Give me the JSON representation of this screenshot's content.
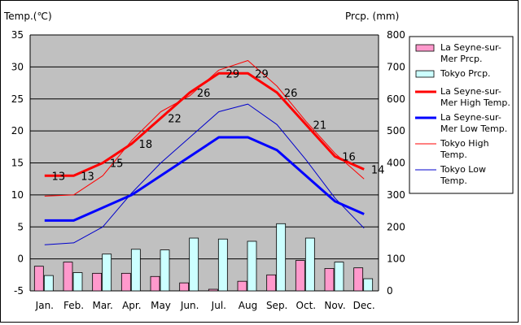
{
  "chart_data": {
    "type": "bar+line",
    "categories": [
      "Jan.",
      "Feb.",
      "Mar.",
      "Apr.",
      "May",
      "Jun.",
      "Jul.",
      "Aug",
      "Sep.",
      "Oct.",
      "Nov.",
      "Dec."
    ],
    "left_axis": {
      "label": "Temp.(℃)",
      "range": [
        -5,
        35
      ],
      "ticks": [
        -5,
        0,
        5,
        10,
        15,
        20,
        25,
        30,
        35
      ]
    },
    "right_axis": {
      "label": "Prcp. (mm)",
      "range": [
        0,
        800
      ],
      "ticks": [
        0,
        100,
        200,
        300,
        400,
        500,
        600,
        700,
        800
      ]
    },
    "grid": true,
    "plot_background": "#c0c0c0",
    "bar_series": [
      {
        "name": "La Seyne-sur-Mer Prcp.",
        "color": "#ff99cc",
        "values": [
          77,
          90,
          55,
          55,
          45,
          25,
          5,
          30,
          50,
          95,
          70,
          72
        ]
      },
      {
        "name": "Tokyo Prcp.",
        "color": "#ccffff",
        "values": [
          48,
          57,
          115,
          130,
          128,
          165,
          162,
          155,
          210,
          165,
          90,
          38
        ]
      }
    ],
    "line_series": [
      {
        "name": "La Seyne-sur-Mer High Temp.",
        "color": "#ff0000",
        "width": 3,
        "values": [
          13,
          13,
          15,
          18,
          22,
          26,
          29,
          29,
          26,
          21,
          16,
          14
        ],
        "show_labels": true
      },
      {
        "name": "La Seyne-sur-Mer Low Temp.",
        "color": "#0000ff",
        "width": 3,
        "values": [
          6,
          6,
          8,
          10,
          13,
          16,
          19,
          19,
          17,
          13,
          9,
          7
        ],
        "show_labels": false
      },
      {
        "name": "Tokyo High Temp.",
        "color": "#ff0000",
        "width": 1,
        "values": [
          9.8,
          10,
          13,
          18.5,
          23,
          25.5,
          29.5,
          31,
          27,
          21.5,
          16.5,
          12.5
        ],
        "show_labels": false
      },
      {
        "name": "Tokyo Low Temp.",
        "color": "#0000cc",
        "width": 1,
        "values": [
          2.2,
          2.5,
          5,
          10.3,
          15,
          19,
          23,
          24.2,
          21,
          15.5,
          9.5,
          4.8
        ],
        "show_labels": false
      }
    ],
    "legend": {
      "placement": "right",
      "entries": [
        {
          "lines": [
            "La Seyne-sur-",
            "Mer Prcp."
          ],
          "kind": "bar",
          "color": "#ff99cc"
        },
        {
          "lines": [
            "Tokyo Prcp."
          ],
          "kind": "bar",
          "color": "#ccffff"
        },
        {
          "lines": [
            "La Seyne-sur-",
            "Mer High Temp."
          ],
          "kind": "line",
          "color": "#ff0000",
          "width": 3
        },
        {
          "lines": [
            "La Seyne-sur-",
            "Mer Low Temp."
          ],
          "kind": "line",
          "color": "#0000ff",
          "width": 3
        },
        {
          "lines": [
            "Tokyo High",
            "Temp."
          ],
          "kind": "line",
          "color": "#ff0000",
          "width": 1
        },
        {
          "lines": [
            "Tokyo Low",
            "Temp."
          ],
          "kind": "line",
          "color": "#0000cc",
          "width": 1
        }
      ]
    }
  }
}
